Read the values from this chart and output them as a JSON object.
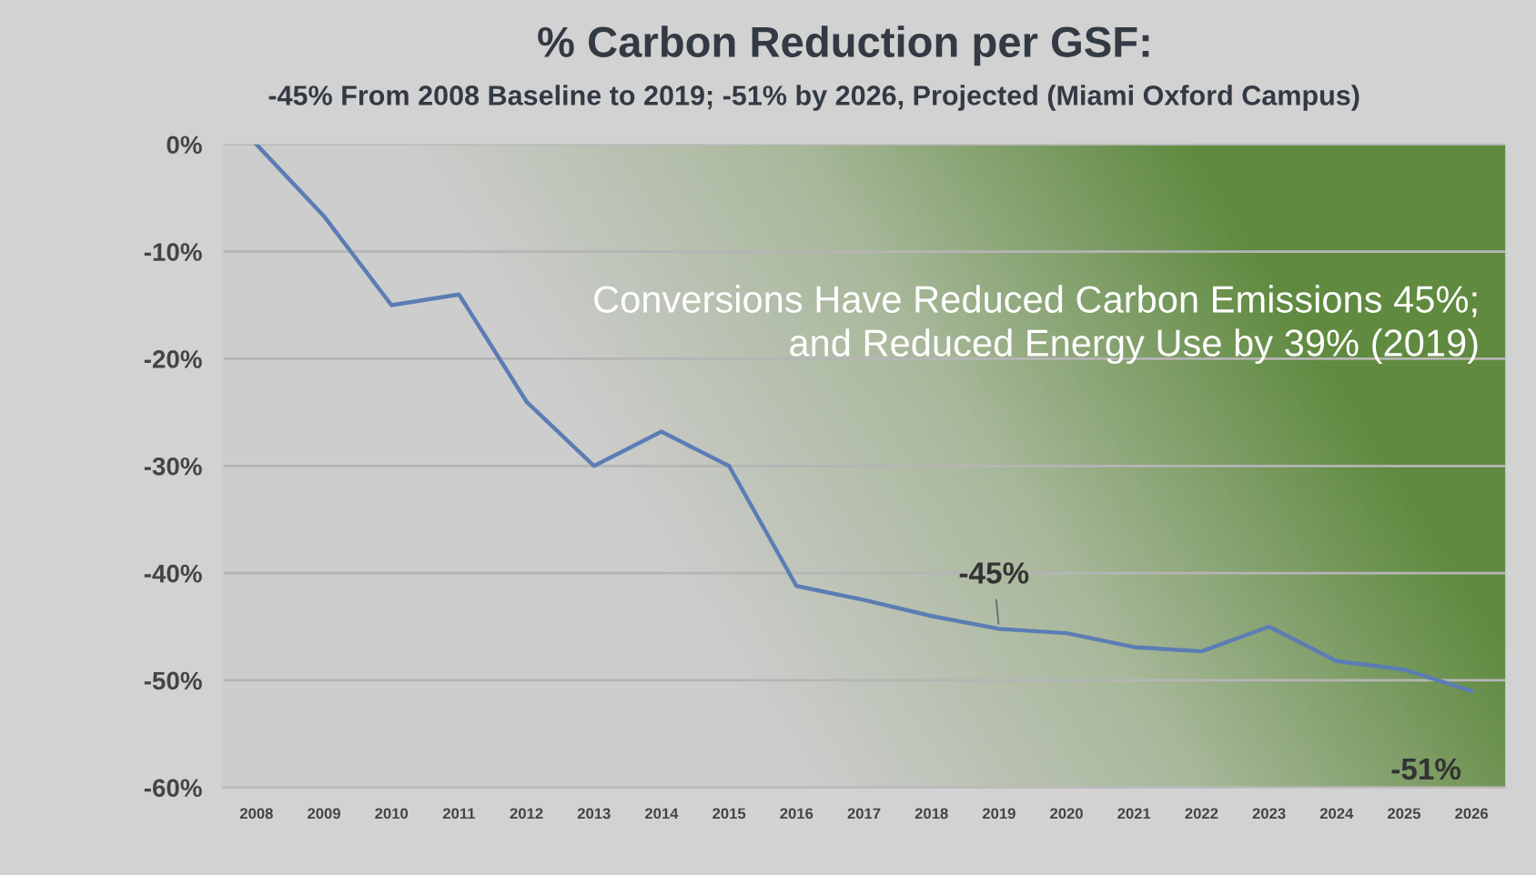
{
  "chart_data": {
    "type": "line",
    "title": "% Carbon Reduction per GSF:",
    "subtitle": "-45% From 2008 Baseline to 2019; -51% by 2026, Projected (Miami Oxford Campus)",
    "categories": [
      "2008",
      "2009",
      "2010",
      "2011",
      "2012",
      "2013",
      "2014",
      "2015",
      "2016",
      "2017",
      "2018",
      "2019",
      "2020",
      "2021",
      "2022",
      "2023",
      "2024",
      "2025",
      "2026"
    ],
    "series": [
      {
        "color": "#5b7db3",
        "values": [
          0,
          -6.7,
          -15,
          -14,
          -24,
          -30,
          -26.8,
          -30,
          -41.2,
          -42.5,
          -44,
          -45.2,
          -45.6,
          -46.9,
          -47.3,
          -45,
          -48.2,
          -49,
          -51
        ]
      }
    ],
    "ylim": [
      -60,
      0
    ],
    "yticks": [
      {
        "value": -60,
        "label": "-60%"
      },
      {
        "value": -50,
        "label": "-50%"
      },
      {
        "value": -40,
        "label": "-40%"
      },
      {
        "value": -30,
        "label": "-30%"
      },
      {
        "value": -20,
        "label": "-20%"
      },
      {
        "value": -10,
        "label": "-10%"
      },
      {
        "value": 0,
        "label": "0%"
      }
    ],
    "grid": "y",
    "legend": false,
    "marker": "none",
    "line_style": "solid",
    "annotations": [
      {
        "text": "-45%",
        "x": "2019",
        "y": -45.2
      },
      {
        "text": "-51%",
        "x": "2026",
        "y": -51
      },
      "Conversions Have Reduced Carbon Emissions 45%;\nand Reduced Energy Use by 39% (2019)"
    ]
  }
}
